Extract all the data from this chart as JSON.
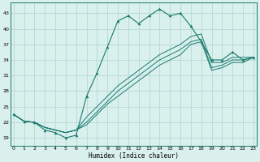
{
  "xlabel": "Humidex (Indice chaleur)",
  "bg_color": "#d9f0ed",
  "grid_color": "#b8dcd8",
  "line_color": "#1a7a6e",
  "x_ticks": [
    0,
    1,
    2,
    3,
    4,
    5,
    6,
    7,
    8,
    9,
    10,
    11,
    12,
    13,
    14,
    15,
    16,
    17,
    18,
    19,
    20,
    21,
    22,
    23
  ],
  "y_ticks": [
    19,
    22,
    25,
    28,
    31,
    34,
    37,
    40,
    43
  ],
  "xlim": [
    -0.3,
    23.3
  ],
  "ylim": [
    17.5,
    45.0
  ],
  "main_series": [
    23.5,
    22.2,
    22.0,
    20.5,
    20.0,
    19.0,
    19.5,
    27.0,
    31.5,
    36.5,
    41.5,
    42.5,
    41.0,
    42.5,
    43.8,
    42.5,
    43.0,
    40.5,
    37.5,
    34.0,
    34.0,
    35.5,
    34.0,
    34.5
  ],
  "line2": [
    23.5,
    22.2,
    22.0,
    21.0,
    20.5,
    20.0,
    20.5,
    23.0,
    25.0,
    27.0,
    29.0,
    30.5,
    32.0,
    33.5,
    35.0,
    36.0,
    37.0,
    38.5,
    39.0,
    33.5,
    33.5,
    34.5,
    34.5,
    34.5
  ],
  "line3": [
    23.5,
    22.2,
    22.0,
    21.0,
    20.5,
    20.0,
    20.5,
    22.0,
    24.0,
    26.0,
    28.0,
    29.5,
    31.0,
    32.5,
    34.0,
    35.0,
    36.0,
    37.5,
    38.0,
    32.5,
    33.0,
    34.0,
    34.0,
    34.5
  ],
  "line4": [
    23.5,
    22.2,
    22.0,
    21.0,
    20.5,
    20.0,
    20.5,
    21.5,
    23.5,
    25.5,
    27.0,
    28.5,
    30.0,
    31.5,
    33.0,
    34.0,
    35.0,
    37.0,
    37.5,
    32.0,
    32.5,
    33.5,
    33.5,
    34.5
  ]
}
